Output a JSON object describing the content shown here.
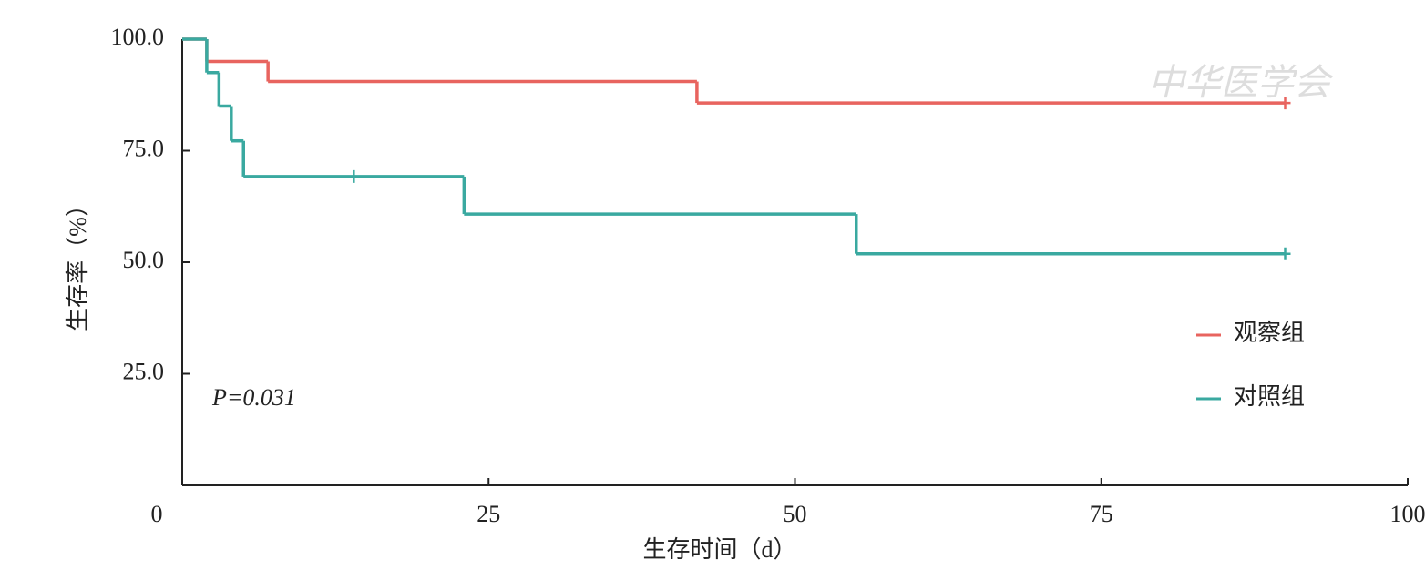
{
  "chart_data": {
    "type": "step",
    "xlabel": "生存时间（d）",
    "ylabel": "生存率（%）",
    "annotation": "P=0.031",
    "watermark": "中华医学会",
    "xlim": [
      0,
      100
    ],
    "xticks": [
      0,
      25,
      50,
      75,
      100
    ],
    "ylim": [
      0,
      100
    ],
    "yticks": [
      {
        "value": 25,
        "label": "25.0"
      },
      {
        "value": 50,
        "label": "50.0"
      },
      {
        "value": 75,
        "label": "75.0"
      },
      {
        "value": 100,
        "label": "100.0"
      }
    ],
    "series": [
      {
        "name": "观察组",
        "color": "#e8645f",
        "x": [
          0,
          2,
          7,
          42,
          90
        ],
        "values": [
          100,
          95,
          90.5,
          85.7,
          85.7
        ],
        "censor_x": [
          90
        ],
        "censor_values": [
          85.7
        ]
      },
      {
        "name": "对照组",
        "color": "#3aa9a0",
        "x": [
          0,
          2,
          3,
          4,
          5,
          23,
          55,
          90
        ],
        "values": [
          100,
          92.5,
          85,
          77.2,
          69.2,
          60.8,
          51.9,
          51.9
        ],
        "censor_x": [
          14,
          90
        ],
        "censor_values": [
          69.2,
          51.9
        ]
      }
    ]
  }
}
